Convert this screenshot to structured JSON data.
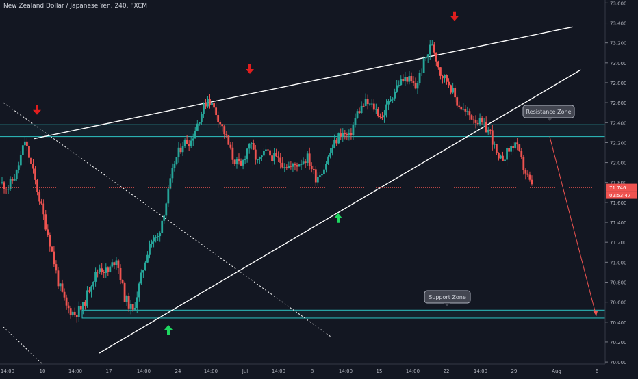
{
  "chart_title": "New Zealand Dollar / Japanese Yen, 240, FXCM",
  "colors": {
    "background": "#131722",
    "up": "#26a69a",
    "down": "#ef5350",
    "trendline": "#ffffff",
    "zone": "#2ec4c4",
    "price_line": "#ef5350",
    "arrow_down": "#e01e1e",
    "arrow_up": "#1ed760",
    "axis_text": "#b2b5be"
  },
  "chart_data": {
    "type": "candlestick",
    "title": "New Zealand Dollar / Japanese Yen, 240, FXCM",
    "xlabel": "",
    "ylabel": "",
    "ylim": [
      69.98,
      73.63
    ],
    "y_ticks": [
      "73.600",
      "73.400",
      "73.200",
      "73.000",
      "72.800",
      "72.600",
      "72.400",
      "72.200",
      "72.000",
      "71.800",
      "71.600",
      "71.400",
      "71.200",
      "71.000",
      "70.800",
      "70.600",
      "70.400",
      "70.200",
      "70.000"
    ],
    "x_ticks": [
      "14:00",
      "10",
      "14:00",
      "17",
      "14:00",
      "24",
      "14:00",
      "Jul",
      "14:00",
      "8",
      "14:00",
      "15",
      "14:00",
      "22",
      "14:00",
      "29",
      "Aug",
      "6"
    ],
    "current_price_label": "71.746",
    "countdown_label": "02:53:47",
    "current_price": 71.746,
    "anchor_closes": [
      71.8,
      71.75,
      71.9,
      72.22,
      71.9,
      71.55,
      71.2,
      70.8,
      70.55,
      70.48,
      70.55,
      70.8,
      70.95,
      70.9,
      71.05,
      70.65,
      70.5,
      70.85,
      71.2,
      71.25,
      71.6,
      72.0,
      72.2,
      72.22,
      72.45,
      72.65,
      72.5,
      72.3,
      72.05,
      71.95,
      72.2,
      72.0,
      72.1,
      72.05,
      72.0,
      71.95,
      72.0,
      72.05,
      71.85,
      71.95,
      72.15,
      72.3,
      72.25,
      72.5,
      72.6,
      72.55,
      72.45,
      72.65,
      72.8,
      72.85,
      72.75,
      73.0,
      73.2,
      72.9,
      72.8,
      72.6,
      72.5,
      72.45,
      72.38,
      72.3,
      72.0,
      72.1,
      72.2,
      71.95,
      71.75
    ],
    "candles_per_anchor": 4,
    "trendlines": [
      {
        "name": "upper-resistance-line",
        "points": [
          [
            "Jun 9 14:00",
            72.24
          ],
          [
            "Aug 4",
            73.36
          ]
        ]
      },
      {
        "name": "rising-support-line",
        "points": [
          [
            "Jun 16",
            70.09
          ],
          [
            "Aug 5",
            72.93
          ]
        ]
      },
      {
        "name": "dotted-falling-line-upper",
        "points": [
          [
            "Jun 8",
            72.6
          ],
          [
            "Jul 10",
            70.25
          ]
        ]
      },
      {
        "name": "dotted-falling-line-lower",
        "points": [
          [
            "Jun 8",
            70.35
          ],
          [
            "Jun 10",
            69.98
          ]
        ]
      }
    ],
    "zones": [
      {
        "name": "resistance-zone",
        "label": "Resistance Zone",
        "from": 72.26,
        "to": 72.38
      },
      {
        "name": "support-zone",
        "label": "Support Zone",
        "from": 70.44,
        "to": 70.52
      }
    ],
    "projection": {
      "from_price": 72.26,
      "to_price": 70.46
    },
    "markers": [
      {
        "name": "arrow-down-1",
        "direction": "down",
        "price": 72.52
      },
      {
        "name": "arrow-down-2",
        "direction": "down",
        "price": 72.93
      },
      {
        "name": "arrow-down-3",
        "direction": "down",
        "price": 73.46
      },
      {
        "name": "arrow-up-1",
        "direction": "up",
        "price": 70.33
      },
      {
        "name": "arrow-up-2",
        "direction": "up",
        "price": 71.45
      }
    ]
  }
}
